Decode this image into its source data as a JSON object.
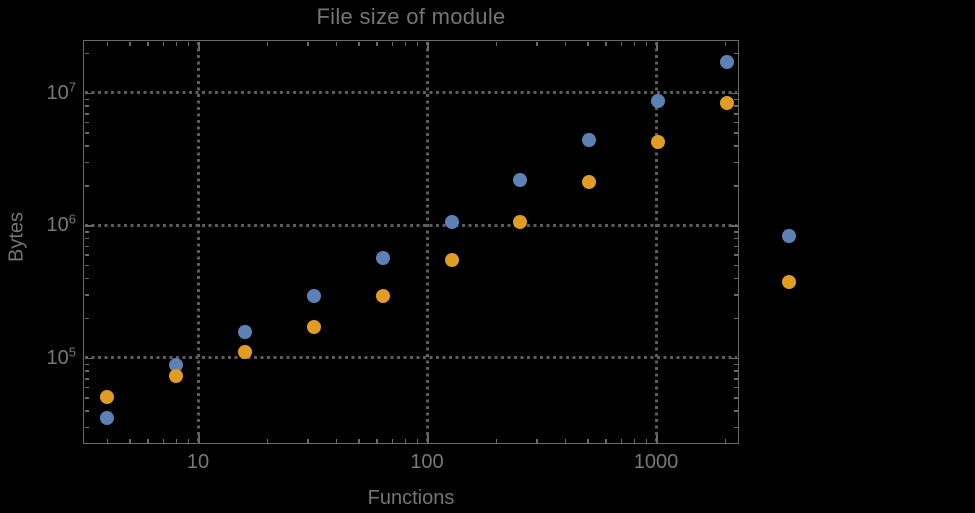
{
  "title": "File size of module",
  "colors": {
    "background": "#000000",
    "frame": "#6a6a6a",
    "grid": "#5d5d5d",
    "text": "#757575",
    "series_blue": "#5E81B5",
    "series_orange": "#E19C24"
  },
  "chart_data": {
    "type": "scatter",
    "title": "File size of module",
    "xlabel": "Functions",
    "ylabel": "Bytes",
    "xscale": "log",
    "yscale": "log",
    "xlim": [
      3.15,
      2300
    ],
    "ylim": [
      22000,
      25000000
    ],
    "grid": "dotted, at decades only",
    "legend": "none",
    "x_ticks": [
      {
        "value": 10,
        "label": "10"
      },
      {
        "value": 100,
        "label": "100"
      },
      {
        "value": 1000,
        "label": "1000"
      }
    ],
    "y_ticks": [
      {
        "value": 100000,
        "base": "10",
        "exp": "5"
      },
      {
        "value": 1000000,
        "base": "10",
        "exp": "6"
      },
      {
        "value": 10000000,
        "base": "10",
        "exp": "7"
      }
    ],
    "series": [
      {
        "name": "blue",
        "color": "#5E81B5",
        "points": [
          [
            4,
            35000
          ],
          [
            8,
            88000
          ],
          [
            16,
            155000
          ],
          [
            32,
            290000
          ],
          [
            64,
            560000
          ],
          [
            128,
            1050000
          ],
          [
            256,
            2200000
          ],
          [
            512,
            4400000
          ],
          [
            1024,
            8600000
          ],
          [
            2048,
            17000000
          ],
          [
            3800,
            830000
          ]
        ]
      },
      {
        "name": "orange",
        "color": "#E19C24",
        "points": [
          [
            4,
            50000
          ],
          [
            8,
            72000
          ],
          [
            16,
            110000
          ],
          [
            32,
            170000
          ],
          [
            64,
            290000
          ],
          [
            128,
            540000
          ],
          [
            256,
            1050000
          ],
          [
            512,
            2100000
          ],
          [
            1024,
            4200000
          ],
          [
            2048,
            8300000
          ],
          [
            3800,
            370000
          ]
        ]
      }
    ],
    "note": "last pair of points (x≈3800) is drawn outside the right edge of the plot frame"
  }
}
